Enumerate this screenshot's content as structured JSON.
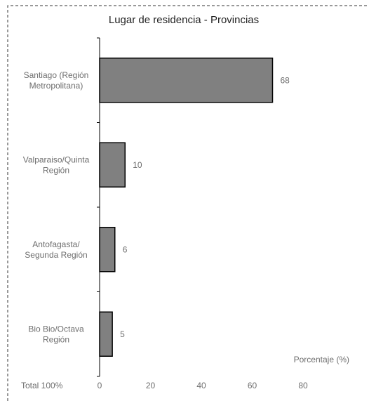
{
  "chart_data": {
    "type": "bar",
    "orientation": "horizontal",
    "title": "Lugar de residencia - Provincias",
    "categories": [
      [
        "Santiago (Región",
        "Metropolitana)"
      ],
      [
        "Valparaiso/Quinta",
        "Región"
      ],
      [
        "Antofagasta/",
        "Segunda Región"
      ],
      [
        "Bio Bio/Octava",
        "Región"
      ]
    ],
    "values": [
      68,
      10,
      6,
      5
    ],
    "xlabel": "Porcentaje (%)",
    "xlim": [
      0,
      80
    ],
    "xticks": [
      0,
      20,
      40,
      60,
      80
    ],
    "grid": false,
    "bar_color": "#808080",
    "bar_edge_color": "#000000",
    "footnote": "Total 100%"
  }
}
